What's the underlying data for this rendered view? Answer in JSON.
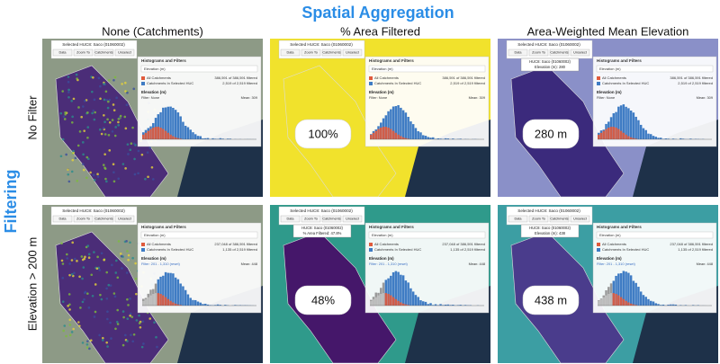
{
  "title": "Spatial Aggregation",
  "row_axis_label": "Filtering",
  "columns": [
    "None (Catchments)",
    "% Area Filtered",
    "Area-Weighted Mean Elevation"
  ],
  "rows": [
    "No Filter",
    "Elevation > 200 m"
  ],
  "panels": [
    [
      {
        "header": "Selected HUC8: Saco (01060002)",
        "buttons": [
          "Data",
          "Zoom To",
          "Catchments",
          "Unselect"
        ],
        "hist_title": "Histograms and Filters",
        "dropdown": "Elevation (m)",
        "legend": [
          {
            "label": "All Catchments",
            "count": "386,591 of 386,591 filtered"
          },
          {
            "label": "Catchments In Selected HUC",
            "count": "2,519 of 2,519 filtered"
          }
        ],
        "field": "Elevation (m)",
        "filter": "Filter: None",
        "mean": "Mean: 309"
      },
      {
        "header": "Selected HUC8: Saco (01060002)",
        "buttons": [
          "Data",
          "Zoom To",
          "Catchments",
          "Unselect"
        ],
        "hist_title": "Histograms and Filters",
        "dropdown": "Elevation (m)",
        "legend": [
          {
            "label": "All Catchments",
            "count": "386,591 of 386,591 filtered"
          },
          {
            "label": "Catchments In Selected HUC",
            "count": "2,519 of 2,519 filtered"
          }
        ],
        "field": "Elevation (m)",
        "filter": "Filter: None",
        "mean": "Mean: 309",
        "big_label": "100%"
      },
      {
        "header": "Selected HUC8: Saco (01060002)",
        "buttons": [
          "Data",
          "Zoom To",
          "Catchments",
          "Unselect"
        ],
        "hist_title": "Histograms and Filters",
        "dropdown": "Elevation (m)",
        "legend": [
          {
            "label": "All Catchments",
            "count": "386,591 of 386,591 filtered"
          },
          {
            "label": "Catchments In Selected HUC",
            "count": "2,519 of 2,519 filtered"
          }
        ],
        "field": "Elevation (m)",
        "filter": "Filter: None",
        "mean": "Mean: 309",
        "big_label": "280 m",
        "tooltip": [
          "HUC8: Saco (01060002)",
          "Elevation (m): 280"
        ]
      }
    ],
    [
      {
        "header": "Selected HUC8: Saco (01060002)",
        "buttons": [
          "Data",
          "Zoom To",
          "Catchments",
          "Unselect"
        ],
        "hist_title": "Histograms and Filters",
        "dropdown": "Elevation (m)",
        "legend": [
          {
            "label": "All Catchments",
            "count": "237,048 of 386,591 filtered"
          },
          {
            "label": "Catchments In Selected HUC",
            "count": "1,135 of 2,519 filtered"
          }
        ],
        "field": "Elevation (m)",
        "filter": "Filter: 201 - 1,310 (reset)",
        "mean": "Mean: 448"
      },
      {
        "header": "Selected HUC8: Saco (01060002)",
        "buttons": [
          "Data",
          "Zoom To",
          "Catchments",
          "Unselect"
        ],
        "hist_title": "Histograms and Filters",
        "dropdown": "Elevation (m)",
        "legend": [
          {
            "label": "All Catchments",
            "count": "237,048 of 386,591 filtered"
          },
          {
            "label": "Catchments In Selected HUC",
            "count": "1,135 of 2,519 filtered"
          }
        ],
        "field": "Elevation (m)",
        "filter": "Filter: 201 - 1,310 (reset)",
        "mean": "Mean: 448",
        "big_label": "48%",
        "tooltip": [
          "HUC8: Saco (01060002)",
          "% Area Filtered: 47.8%"
        ]
      },
      {
        "header": "Selected HUC8: Saco (01060002)",
        "buttons": [
          "Data",
          "Zoom To",
          "Catchments",
          "Unselect"
        ],
        "hist_title": "Histograms and Filters",
        "dropdown": "Elevation (m)",
        "legend": [
          {
            "label": "All Catchments",
            "count": "237,048 of 386,591 filtered"
          },
          {
            "label": "Catchments In Selected HUC",
            "count": "1,135 of 2,519 filtered"
          }
        ],
        "field": "Elevation (m)",
        "filter": "Filter: 201 - 1,310 (reset)",
        "mean": "Mean: 448",
        "big_label": "438 m",
        "tooltip": [
          "HUC8: Saco (01060002)",
          "Elevation (m): 438"
        ]
      }
    ]
  ]
}
